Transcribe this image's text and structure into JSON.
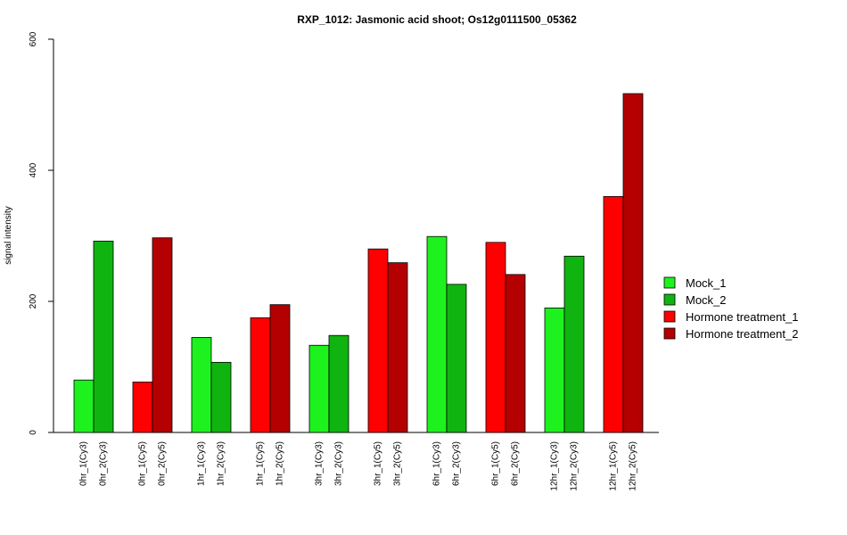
{
  "chart_data": {
    "type": "bar",
    "title": "RXP_1012: Jasmonic acid shoot; Os12g0111500_05362",
    "ylabel": "signal intensity",
    "xlabel": "",
    "ylim": [
      0,
      600
    ],
    "yticks": [
      0,
      200,
      400,
      600
    ],
    "legend_position": "right",
    "series": [
      {
        "name": "Mock_1",
        "color": "#1EF21E"
      },
      {
        "name": "Mock_2",
        "color": "#10B410"
      },
      {
        "name": "Hormone treatment_1",
        "color": "#FF0000"
      },
      {
        "name": "Hormone treatment_2",
        "color": "#B40000"
      }
    ],
    "groups": [
      {
        "bars": [
          {
            "label": "0hr_1(Cy3)",
            "value": 80,
            "series": 0
          },
          {
            "label": "0hr_2(Cy3)",
            "value": 292,
            "series": 1
          }
        ]
      },
      {
        "bars": [
          {
            "label": "0hr_1(Cy5)",
            "value": 77,
            "series": 2
          },
          {
            "label": "0hr_2(Cy5)",
            "value": 297,
            "series": 3
          }
        ]
      },
      {
        "bars": [
          {
            "label": "1hr_1(Cy3)",
            "value": 145,
            "series": 0
          },
          {
            "label": "1hr_2(Cy3)",
            "value": 107,
            "series": 1
          }
        ]
      },
      {
        "bars": [
          {
            "label": "1hr_1(Cy5)",
            "value": 175,
            "series": 2
          },
          {
            "label": "1hr_2(Cy5)",
            "value": 195,
            "series": 3
          }
        ]
      },
      {
        "bars": [
          {
            "label": "3hr_1(Cy3)",
            "value": 133,
            "series": 0
          },
          {
            "label": "3hr_2(Cy3)",
            "value": 148,
            "series": 1
          }
        ]
      },
      {
        "bars": [
          {
            "label": "3hr_1(Cy5)",
            "value": 280,
            "series": 2
          },
          {
            "label": "3hr_2(Cy5)",
            "value": 259,
            "series": 3
          }
        ]
      },
      {
        "bars": [
          {
            "label": "6hr_1(Cy3)",
            "value": 299,
            "series": 0
          },
          {
            "label": "6hr_2(Cy3)",
            "value": 226,
            "series": 1
          }
        ]
      },
      {
        "bars": [
          {
            "label": "6hr_1(Cy5)",
            "value": 290,
            "series": 2
          },
          {
            "label": "6hr_2(Cy5)",
            "value": 241,
            "series": 3
          }
        ]
      },
      {
        "bars": [
          {
            "label": "12hr_1(Cy3)",
            "value": 190,
            "series": 0
          },
          {
            "label": "12hr_2(Cy3)",
            "value": 269,
            "series": 1
          }
        ]
      },
      {
        "bars": [
          {
            "label": "12hr_1(Cy5)",
            "value": 360,
            "series": 2
          },
          {
            "label": "12hr_2(Cy5)",
            "value": 517,
            "series": 3
          }
        ]
      }
    ]
  }
}
